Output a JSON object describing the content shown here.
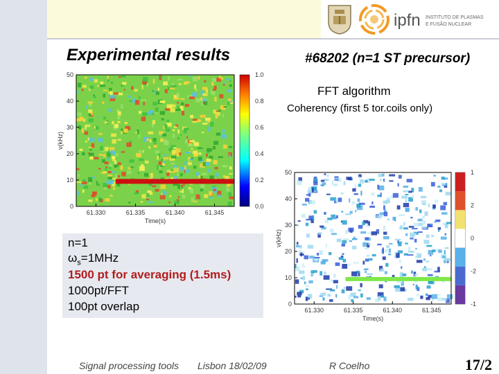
{
  "slide": {
    "title": "Experimental results",
    "shot": "#68202  (n=1 ST precursor)",
    "fft_label": "FFT algorithm",
    "coherency_label": "Coherency (first 5 tor.coils only)"
  },
  "logos": {
    "ipfn_text": "ipfn",
    "institute_line1": "INSTITUTO DE PLASMAS",
    "institute_line2": "E FUSÃO NUCLEAR"
  },
  "parameters": {
    "n": "n=1",
    "ws_symbol": "ω",
    "ws_sub": "s",
    "ws_value": "=1MHz",
    "averaging": "1500 pt for averaging (1.5ms)",
    "fft_points": "1000pt/FFT",
    "overlap": "100pt overlap"
  },
  "footer": {
    "topic": "Signal processing tools",
    "venue_date": "Lisbon 18/02/09",
    "author": "R Coelho",
    "page": "17/2"
  },
  "colors": {
    "red_text": "#b31d1d",
    "left_band": "#dfe3ec",
    "top_band": "#fbfbdc"
  },
  "chart_data": [
    {
      "type": "heatmap",
      "x_tick_labels": [
        "61.330",
        "61.335",
        "61.340",
        "61.345"
      ],
      "y_tick_labels": [
        "0",
        "10",
        "20",
        "30",
        "40",
        "50"
      ],
      "xlabel": "Time(s)",
      "ylabel": "ν(kHz)",
      "xlim": [
        61.3275,
        61.3475
      ],
      "ylim": [
        0,
        50
      ],
      "colorbar_ticks": [
        "0.0",
        "0.2",
        "0.4",
        "0.6",
        "0.8",
        "1.0"
      ],
      "colorbar_range": [
        0,
        1
      ],
      "features": "dominant red coherent band near 10 kHz from about 61.332 s to 61.347 s; noisy green/yellow background"
    },
    {
      "type": "heatmap",
      "x_tick_labels": [
        "61.330",
        "61.335",
        "61.340",
        "61.345"
      ],
      "y_tick_labels": [
        "0",
        "10",
        "20",
        "30",
        "40",
        "50"
      ],
      "xlabel": "Time(s)",
      "ylabel": "ν(kHz)",
      "xlim": [
        61.3275,
        61.3475
      ],
      "ylim": [
        0,
        50
      ],
      "colorbar_ticks": [
        "-1",
        "-2",
        "0",
        "2",
        "1"
      ],
      "features": "green mode band near 10 kHz from about 61.334 s to 61.347 s; scattered blue/cyan patches"
    }
  ]
}
